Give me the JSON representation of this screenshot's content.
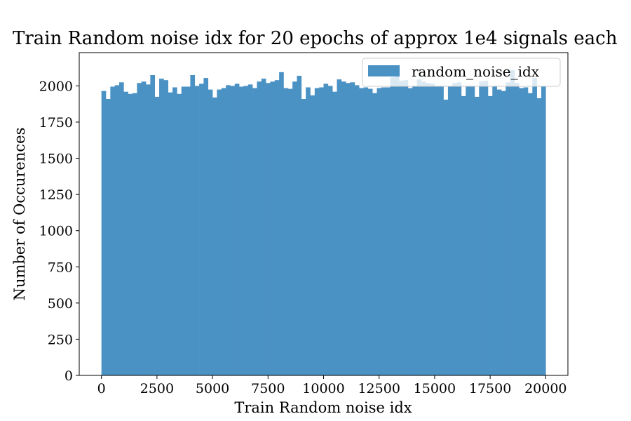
{
  "chart_data": {
    "type": "bar",
    "title": "Train Random noise idx for 20 epochs of approx 1e4 signals each",
    "xlabel": "Train Random noise idx",
    "ylabel": "Number of Occurences",
    "xlim": [
      -1000,
      21000
    ],
    "ylim": [
      0,
      2230
    ],
    "xticks": [
      0,
      2500,
      5000,
      7500,
      10000,
      12500,
      15000,
      17500,
      20000
    ],
    "yticks": [
      0,
      250,
      500,
      750,
      1000,
      1250,
      1500,
      1750,
      2000
    ],
    "bin_range": [
      0,
      20000
    ],
    "bin_count": 100,
    "grid": false,
    "legend_position": "top-right",
    "colors": {
      "bar": "#4a91c4",
      "axes": "#000000",
      "background": "#ffffff"
    },
    "series": [
      {
        "name": "random_noise_idx",
        "values": [
          1965,
          1910,
          1995,
          2005,
          2025,
          1960,
          1945,
          1950,
          2020,
          2030,
          2010,
          2075,
          1925,
          2050,
          2040,
          1955,
          1990,
          1945,
          1995,
          1995,
          2075,
          2000,
          2015,
          2055,
          1975,
          1920,
          1975,
          1985,
          2005,
          2000,
          2015,
          1995,
          2000,
          2010,
          1985,
          2030,
          2050,
          2020,
          2030,
          2040,
          2095,
          1985,
          1980,
          2030,
          2070,
          1910,
          1990,
          1935,
          1985,
          1990,
          2015,
          2000,
          1960,
          2045,
          2030,
          2020,
          2025,
          2005,
          1985,
          1990,
          1980,
          1950,
          1985,
          1990,
          1990,
          2060,
          2065,
          2035,
          2040,
          1985,
          2000,
          2045,
          2030,
          2020,
          2015,
          1995,
          2000,
          1905,
          1995,
          2020,
          2025,
          1930,
          1995,
          2000,
          1925,
          2030,
          2035,
          1930,
          1995,
          1975,
          1965,
          2025,
          2110,
          2020,
          1985,
          1990,
          1950,
          2055,
          1915,
          2000
        ]
      }
    ]
  }
}
